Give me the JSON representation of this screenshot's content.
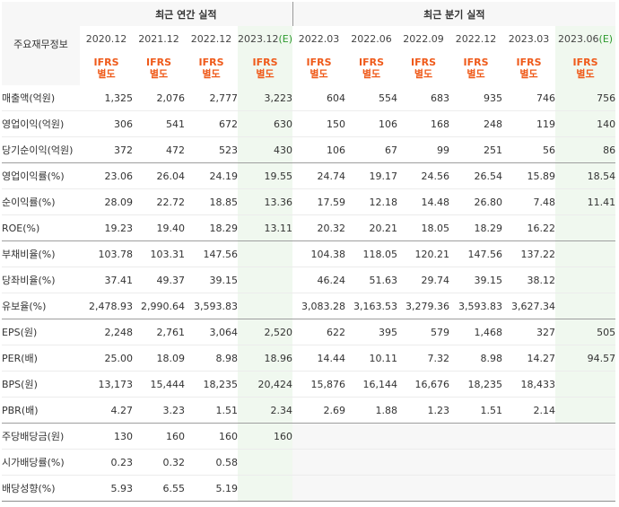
{
  "header": {
    "corner_label": "주요재무정보",
    "annual_title": "최근 연간 실적",
    "quarter_title": "최근 분기 실적",
    "periods": [
      "2020.12",
      "2021.12",
      "2022.12",
      "2023.12",
      "2022.03",
      "2022.06",
      "2022.09",
      "2022.12",
      "2023.03",
      "2023.06"
    ],
    "estimate_mark": "(E)",
    "std_line1": "IFRS",
    "std_line2": "별도"
  },
  "rows": [
    {
      "label": "매출액(억원)",
      "values": [
        "1,325",
        "2,076",
        "2,777",
        "3,223",
        "604",
        "554",
        "683",
        "935",
        "746",
        "756"
      ]
    },
    {
      "label": "영업이익(억원)",
      "values": [
        "306",
        "541",
        "672",
        "630",
        "150",
        "106",
        "168",
        "248",
        "119",
        "140"
      ]
    },
    {
      "label": "당기순이익(억원)",
      "values": [
        "372",
        "472",
        "523",
        "430",
        "106",
        "67",
        "99",
        "251",
        "56",
        "86"
      ]
    },
    {
      "label": "영업이익률(%)",
      "values": [
        "23.06",
        "26.04",
        "24.19",
        "19.55",
        "24.74",
        "19.17",
        "24.56",
        "26.54",
        "15.89",
        "18.54"
      ]
    },
    {
      "label": "순이익률(%)",
      "values": [
        "28.09",
        "22.72",
        "18.85",
        "13.36",
        "17.59",
        "12.18",
        "14.48",
        "26.80",
        "7.48",
        "11.41"
      ]
    },
    {
      "label": "ROE(%)",
      "values": [
        "19.23",
        "19.40",
        "18.29",
        "13.11",
        "20.32",
        "20.21",
        "18.05",
        "18.29",
        "16.22",
        ""
      ]
    },
    {
      "label": "부채비율(%)",
      "values": [
        "103.78",
        "103.31",
        "147.56",
        "",
        "104.38",
        "118.05",
        "120.21",
        "147.56",
        "137.22",
        ""
      ]
    },
    {
      "label": "당좌비율(%)",
      "values": [
        "37.41",
        "49.37",
        "39.15",
        "",
        "46.24",
        "51.63",
        "29.74",
        "39.15",
        "38.12",
        ""
      ]
    },
    {
      "label": "유보율(%)",
      "values": [
        "2,478.93",
        "2,990.64",
        "3,593.83",
        "",
        "3,083.28",
        "3,163.53",
        "3,279.36",
        "3,593.83",
        "3,627.34",
        ""
      ]
    },
    {
      "label": "EPS(원)",
      "values": [
        "2,248",
        "2,761",
        "3,064",
        "2,520",
        "622",
        "395",
        "579",
        "1,468",
        "327",
        "505"
      ]
    },
    {
      "label": "PER(배)",
      "values": [
        "25.00",
        "18.09",
        "8.98",
        "18.96",
        "14.44",
        "10.11",
        "7.32",
        "8.98",
        "14.27",
        "94.57"
      ]
    },
    {
      "label": "BPS(원)",
      "values": [
        "13,173",
        "15,444",
        "18,235",
        "20,424",
        "15,876",
        "16,144",
        "16,676",
        "18,235",
        "18,433",
        ""
      ]
    },
    {
      "label": "PBR(배)",
      "values": [
        "4.27",
        "3.23",
        "1.51",
        "2.34",
        "2.69",
        "1.88",
        "1.23",
        "1.51",
        "2.14",
        ""
      ]
    },
    {
      "label": "주당배당금(원)",
      "values": [
        "130",
        "160",
        "160",
        "160",
        "",
        "",
        "",
        "",
        "",
        ""
      ]
    },
    {
      "label": "시가배당률(%)",
      "values": [
        "0.23",
        "0.32",
        "0.58",
        "",
        "",
        "",
        "",
        "",
        "",
        ""
      ]
    },
    {
      "label": "배당성향(%)",
      "values": [
        "5.93",
        "6.55",
        "5.19",
        "",
        "",
        "",
        "",
        "",
        "",
        ""
      ]
    }
  ]
}
